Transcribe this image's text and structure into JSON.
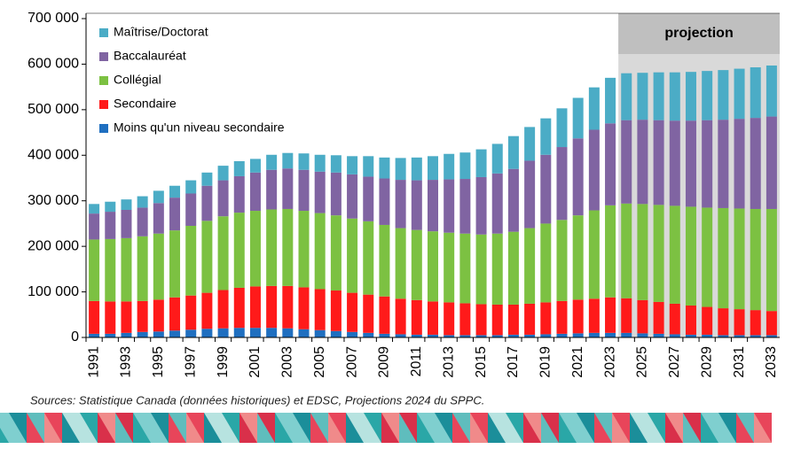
{
  "chart_data": {
    "type": "stacked_bar",
    "categories": [
      "1991",
      null,
      "1993",
      null,
      "1995",
      null,
      "1997",
      null,
      "1999",
      null,
      "2001",
      null,
      "2003",
      null,
      "2005",
      null,
      "2007",
      null,
      "2009",
      null,
      "2011",
      null,
      "2013",
      null,
      "2015",
      null,
      "2017",
      null,
      "2019",
      null,
      "2021",
      null,
      "2023",
      null,
      "2025",
      null,
      "2027",
      null,
      "2029",
      null,
      "2031",
      null,
      "2033"
    ],
    "series": [
      {
        "name": "Moins qu'un niveau secondaire",
        "color": "#1f6fc0",
        "values": [
          8000,
          8000,
          10000,
          12000,
          13000,
          15000,
          17000,
          19000,
          20000,
          21000,
          21000,
          21000,
          20000,
          18000,
          16000,
          14000,
          12000,
          10000,
          8000,
          7000,
          6000,
          6000,
          5000,
          5000,
          5000,
          5000,
          6000,
          6000,
          7000,
          8000,
          9000,
          10000,
          10000,
          10000,
          9000,
          8000,
          7000,
          6000,
          6000,
          5000,
          5000,
          5000,
          5000
        ]
      },
      {
        "name": "Secondaire",
        "color": "#ff1a1a",
        "values": [
          72000,
          71000,
          69000,
          68000,
          70000,
          73000,
          75000,
          79000,
          84000,
          88000,
          91000,
          92000,
          93000,
          92000,
          90000,
          89000,
          86000,
          84000,
          82000,
          78000,
          76000,
          73000,
          72000,
          70000,
          68000,
          67000,
          66000,
          68000,
          70000,
          72000,
          74000,
          75000,
          78000,
          76000,
          73000,
          70000,
          67000,
          64000,
          61000,
          59000,
          57000,
          55000,
          53000
        ]
      },
      {
        "name": "Collégial",
        "color": "#7cc142",
        "values": [
          135000,
          137000,
          139000,
          142000,
          145000,
          147000,
          153000,
          158000,
          162000,
          165000,
          166000,
          168000,
          169000,
          168000,
          167000,
          165000,
          163000,
          161000,
          157000,
          155000,
          154000,
          154000,
          153000,
          153000,
          153000,
          156000,
          160000,
          166000,
          173000,
          178000,
          185000,
          194000,
          202000,
          208000,
          211000,
          213000,
          215000,
          217000,
          218000,
          220000,
          221000,
          222000,
          224000
        ]
      },
      {
        "name": "Baccalauréat",
        "color": "#8064a2",
        "values": [
          57000,
          60000,
          62000,
          63000,
          67000,
          72000,
          71000,
          77000,
          79000,
          80000,
          84000,
          87000,
          89000,
          90000,
          91000,
          94000,
          97000,
          98000,
          102000,
          106000,
          109000,
          113000,
          117000,
          120000,
          126000,
          132000,
          138000,
          148000,
          151000,
          160000,
          169000,
          177000,
          180000,
          183000,
          185000,
          186000,
          187000,
          189000,
          192000,
          194000,
          197000,
          200000,
          203000
        ]
      },
      {
        "name": "Maîtrise/Doctorat",
        "color": "#4bacc6",
        "values": [
          21000,
          22000,
          23000,
          25000,
          27000,
          26000,
          29000,
          29000,
          32000,
          33000,
          30000,
          33000,
          34000,
          36000,
          37000,
          38000,
          40000,
          45000,
          46000,
          48000,
          50000,
          52000,
          56000,
          58000,
          61000,
          65000,
          72000,
          74000,
          80000,
          85000,
          89000,
          93000,
          100000,
          103000,
          103000,
          105000,
          106000,
          107000,
          108000,
          109000,
          110000,
          111000,
          112000
        ]
      }
    ],
    "ylim": [
      0,
      700000
    ],
    "yticks": [
      0,
      {
        "value": 100000,
        "label": "100 000"
      },
      {
        "value": 200000,
        "label": "200 000"
      },
      {
        "value": 300000,
        "label": "300 000"
      },
      {
        "value": 400000,
        "label": "400 000"
      },
      {
        "value": 500000,
        "label": "500 000"
      },
      {
        "value": 600000,
        "label": "600 000"
      },
      {
        "value": 700000,
        "label": "700 000"
      }
    ],
    "annotation": "projection",
    "source": "Sources: Statistique Canada (données historiques) et EDSC, Projections 2024 du SPPC."
  }
}
